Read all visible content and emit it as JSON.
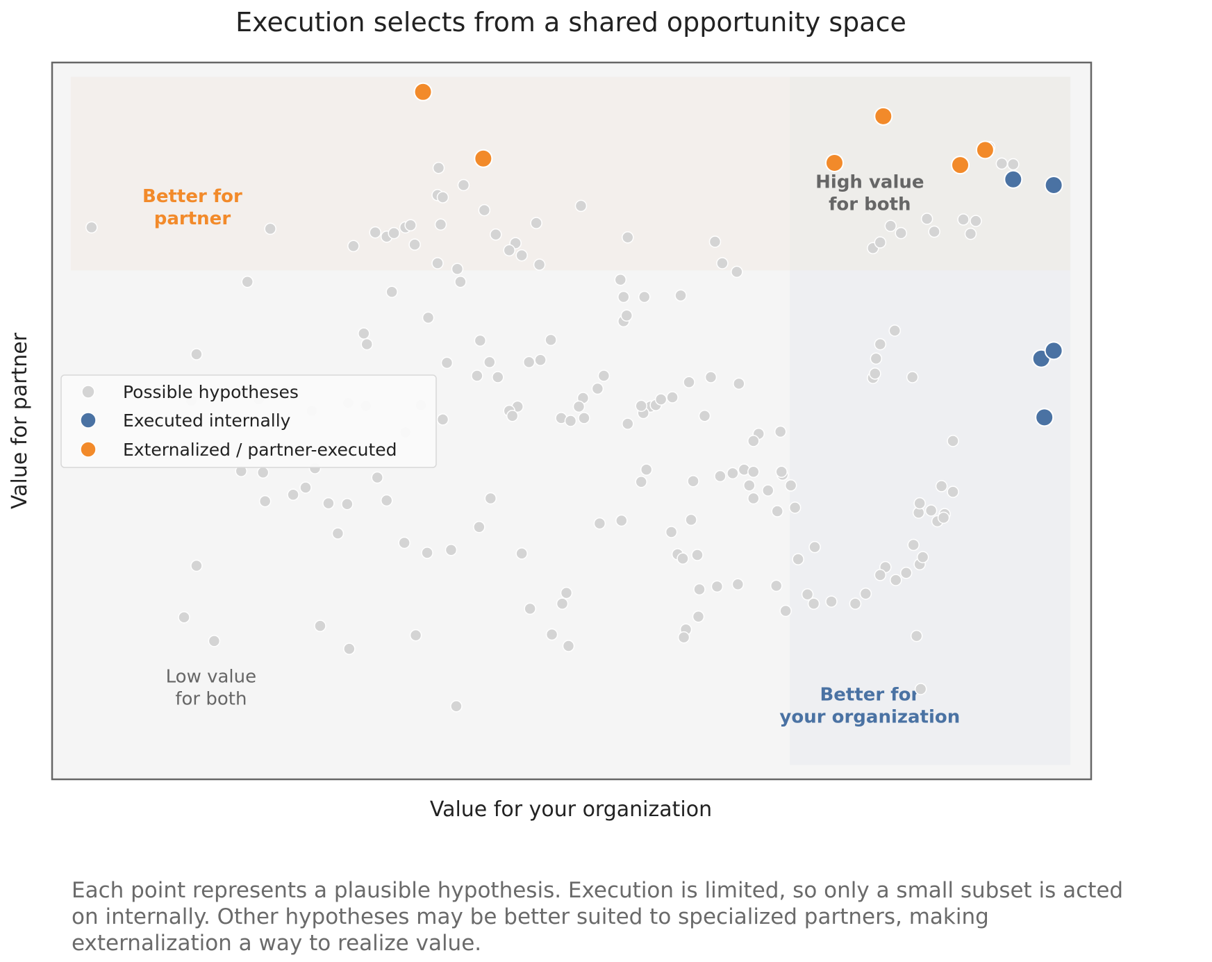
{
  "chart_data": {
    "type": "scatter",
    "title": "Execution selects from a shared opportunity space",
    "xlabel": "Value for your organization",
    "ylabel": "Value for partner",
    "xlim": [
      0,
      1
    ],
    "ylim": [
      0,
      1
    ],
    "grid": false,
    "legend_position": "center-left",
    "legend": [
      "Possible hypotheses",
      "Executed internally",
      "Externalized / partner-executed"
    ],
    "colors": {
      "possible": "#d4d4d4",
      "internal": "#4a72a3",
      "external": "#f28a2a",
      "plot_bg": "#f5f5f5",
      "region_partner": "#f3efec",
      "region_org": "#eeeff2",
      "region_both": "#eeedea"
    },
    "regions": [
      {
        "name": "Better for\npartner",
        "x_range": [
          0.018,
          0.98
        ],
        "y_range": [
          0.71,
          0.98
        ],
        "style": "partner"
      },
      {
        "name": "Better for\nyour organization",
        "x_range": [
          0.71,
          0.98
        ],
        "y_range": [
          0.02,
          0.98
        ],
        "style": "org"
      },
      {
        "name": "High value\nfor both",
        "x_range": [
          0.71,
          0.98
        ],
        "y_range": [
          0.71,
          0.98
        ],
        "style": "both"
      }
    ],
    "region_labels": [
      {
        "text": "Better for\npartner",
        "x": 0.135,
        "y": 0.805,
        "style": "partner"
      },
      {
        "text": "High value\nfor both",
        "x": 0.787,
        "y": 0.825,
        "style": "both"
      },
      {
        "text": "Better for\nyour organization",
        "x": 0.787,
        "y": 0.11,
        "style": "org"
      },
      {
        "text": "Low value\nfor both",
        "x": 0.153,
        "y": 0.135,
        "style": "low"
      }
    ],
    "series": [
      {
        "name": "Possible hypotheses",
        "points": [
          [
            0.038,
            0.77
          ],
          [
            0.21,
            0.768
          ],
          [
            0.188,
            0.694
          ],
          [
            0.139,
            0.593
          ],
          [
            0.134,
            0.528
          ],
          [
            0.199,
            0.53
          ],
          [
            0.25,
            0.514
          ],
          [
            0.182,
            0.43
          ],
          [
            0.203,
            0.428
          ],
          [
            0.205,
            0.388
          ],
          [
            0.244,
            0.407
          ],
          [
            0.266,
            0.385
          ],
          [
            0.284,
            0.384
          ],
          [
            0.322,
            0.389
          ],
          [
            0.139,
            0.298
          ],
          [
            0.127,
            0.226
          ],
          [
            0.156,
            0.193
          ],
          [
            0.258,
            0.214
          ],
          [
            0.286,
            0.182
          ],
          [
            0.35,
            0.201
          ],
          [
            0.389,
            0.102
          ],
          [
            0.371,
            0.72
          ],
          [
            0.393,
            0.694
          ],
          [
            0.39,
            0.712
          ],
          [
            0.374,
            0.774
          ],
          [
            0.371,
            0.815
          ],
          [
            0.376,
            0.812
          ],
          [
            0.396,
            0.829
          ],
          [
            0.416,
            0.794
          ],
          [
            0.427,
            0.76
          ],
          [
            0.446,
            0.748
          ],
          [
            0.452,
            0.731
          ],
          [
            0.466,
            0.776
          ],
          [
            0.44,
            0.738
          ],
          [
            0.469,
            0.718
          ],
          [
            0.372,
            0.853
          ],
          [
            0.311,
            0.763
          ],
          [
            0.322,
            0.757
          ],
          [
            0.34,
            0.77
          ],
          [
            0.349,
            0.746
          ],
          [
            0.345,
            0.773
          ],
          [
            0.329,
            0.762
          ],
          [
            0.29,
            0.744
          ],
          [
            0.327,
            0.68
          ],
          [
            0.362,
            0.644
          ],
          [
            0.3,
            0.622
          ],
          [
            0.303,
            0.607
          ],
          [
            0.38,
            0.581
          ],
          [
            0.412,
            0.612
          ],
          [
            0.409,
            0.563
          ],
          [
            0.421,
            0.582
          ],
          [
            0.429,
            0.561
          ],
          [
            0.448,
            0.52
          ],
          [
            0.44,
            0.514
          ],
          [
            0.443,
            0.507
          ],
          [
            0.459,
            0.582
          ],
          [
            0.47,
            0.585
          ],
          [
            0.48,
            0.613
          ],
          [
            0.511,
            0.532
          ],
          [
            0.507,
            0.52
          ],
          [
            0.512,
            0.504
          ],
          [
            0.509,
            0.8
          ],
          [
            0.554,
            0.756
          ],
          [
            0.547,
            0.697
          ],
          [
            0.55,
            0.673
          ],
          [
            0.57,
            0.673
          ],
          [
            0.55,
            0.639
          ],
          [
            0.553,
            0.647
          ],
          [
            0.576,
            0.52
          ],
          [
            0.581,
            0.522
          ],
          [
            0.586,
            0.53
          ],
          [
            0.597,
            0.533
          ],
          [
            0.569,
            0.511
          ],
          [
            0.531,
            0.563
          ],
          [
            0.49,
            0.504
          ],
          [
            0.499,
            0.5
          ],
          [
            0.525,
            0.545
          ],
          [
            0.554,
            0.496
          ],
          [
            0.567,
            0.521
          ],
          [
            0.613,
            0.554
          ],
          [
            0.605,
            0.675
          ],
          [
            0.638,
            0.75
          ],
          [
            0.645,
            0.72
          ],
          [
            0.659,
            0.708
          ],
          [
            0.628,
            0.507
          ],
          [
            0.634,
            0.561
          ],
          [
            0.661,
            0.552
          ],
          [
            0.666,
            0.432
          ],
          [
            0.68,
            0.482
          ],
          [
            0.701,
            0.485
          ],
          [
            0.675,
            0.472
          ],
          [
            0.675,
            0.429
          ],
          [
            0.703,
            0.425
          ],
          [
            0.711,
            0.41
          ],
          [
            0.702,
            0.429
          ],
          [
            0.689,
            0.403
          ],
          [
            0.675,
            0.392
          ],
          [
            0.698,
            0.374
          ],
          [
            0.715,
            0.379
          ],
          [
            0.718,
            0.307
          ],
          [
            0.734,
            0.324
          ],
          [
            0.75,
            0.248
          ],
          [
            0.773,
            0.245
          ],
          [
            0.802,
            0.296
          ],
          [
            0.797,
            0.285
          ],
          [
            0.783,
            0.259
          ],
          [
            0.812,
            0.278
          ],
          [
            0.822,
            0.288
          ],
          [
            0.829,
            0.327
          ],
          [
            0.834,
            0.372
          ],
          [
            0.846,
            0.375
          ],
          [
            0.856,
            0.409
          ],
          [
            0.859,
            0.37
          ],
          [
            0.835,
            0.385
          ],
          [
            0.852,
            0.36
          ],
          [
            0.835,
            0.3
          ],
          [
            0.832,
            0.2
          ],
          [
            0.836,
            0.126
          ],
          [
            0.838,
            0.31
          ],
          [
            0.858,
            0.365
          ],
          [
            0.867,
            0.401
          ],
          [
            0.867,
            0.472
          ],
          [
            0.828,
            0.561
          ],
          [
            0.811,
            0.626
          ],
          [
            0.793,
            0.587
          ],
          [
            0.797,
            0.607
          ],
          [
            0.79,
            0.56
          ],
          [
            0.792,
            0.566
          ],
          [
            0.79,
            0.741
          ],
          [
            0.797,
            0.749
          ],
          [
            0.807,
            0.772
          ],
          [
            0.817,
            0.762
          ],
          [
            0.849,
            0.764
          ],
          [
            0.842,
            0.782
          ],
          [
            0.877,
            0.781
          ],
          [
            0.889,
            0.779
          ],
          [
            0.884,
            0.761
          ],
          [
            0.914,
            0.859
          ],
          [
            0.925,
            0.858
          ],
          [
            0.902,
            0.882
          ],
          [
            0.355,
            0.522
          ],
          [
            0.376,
            0.502
          ],
          [
            0.302,
            0.521
          ],
          [
            0.285,
            0.525
          ],
          [
            0.34,
            0.484
          ],
          [
            0.313,
            0.421
          ],
          [
            0.253,
            0.434
          ],
          [
            0.232,
            0.397
          ],
          [
            0.275,
            0.343
          ],
          [
            0.339,
            0.33
          ],
          [
            0.361,
            0.316
          ],
          [
            0.384,
            0.32
          ],
          [
            0.411,
            0.352
          ],
          [
            0.422,
            0.392
          ],
          [
            0.452,
            0.315
          ],
          [
            0.46,
            0.238
          ],
          [
            0.491,
            0.245
          ],
          [
            0.495,
            0.26
          ],
          [
            0.481,
            0.202
          ],
          [
            0.497,
            0.186
          ],
          [
            0.527,
            0.357
          ],
          [
            0.548,
            0.361
          ],
          [
            0.567,
            0.415
          ],
          [
            0.572,
            0.432
          ],
          [
            0.596,
            0.345
          ],
          [
            0.602,
            0.314
          ],
          [
            0.607,
            0.308
          ],
          [
            0.621,
            0.313
          ],
          [
            0.623,
            0.265
          ],
          [
            0.64,
            0.269
          ],
          [
            0.66,
            0.272
          ],
          [
            0.697,
            0.27
          ],
          [
            0.706,
            0.235
          ],
          [
            0.727,
            0.258
          ],
          [
            0.733,
            0.245
          ],
          [
            0.61,
            0.209
          ],
          [
            0.622,
            0.227
          ],
          [
            0.608,
            0.198
          ],
          [
            0.615,
            0.362
          ],
          [
            0.617,
            0.416
          ],
          [
            0.643,
            0.423
          ],
          [
            0.655,
            0.427
          ],
          [
            0.671,
            0.41
          ]
        ]
      },
      {
        "name": "Executed internally",
        "points": [
          [
            0.925,
            0.837
          ],
          [
            0.964,
            0.829
          ],
          [
            0.952,
            0.587
          ],
          [
            0.964,
            0.598
          ],
          [
            0.955,
            0.505
          ]
        ]
      },
      {
        "name": "Externalized / partner-executed",
        "points": [
          [
            0.357,
            0.959
          ],
          [
            0.415,
            0.866
          ],
          [
            0.753,
            0.86
          ],
          [
            0.8,
            0.925
          ],
          [
            0.874,
            0.857
          ],
          [
            0.898,
            0.878
          ]
        ]
      }
    ]
  },
  "caption_lines": [
    "Each point represents a plausible hypothesis. Execution is limited, so only a small subset is acted",
    "on internally. Other hypotheses may be better suited to specialized partners, making",
    "externalization a way to realize value."
  ]
}
